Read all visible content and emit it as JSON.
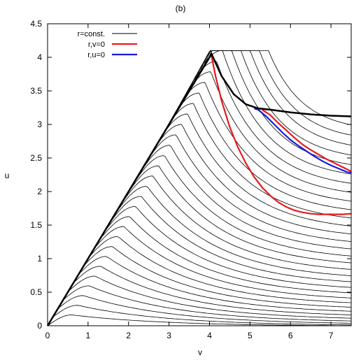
{
  "chart_data": {
    "type": "line",
    "title": "(b)",
    "xlabel": "v",
    "ylabel": "u",
    "xlim": [
      0,
      7.5
    ],
    "ylim": [
      0,
      4.5
    ],
    "x_ticks": [
      0,
      1,
      2,
      3,
      4,
      5,
      6,
      7
    ],
    "y_ticks": [
      0,
      0.5,
      1,
      1.5,
      2,
      2.5,
      3,
      3.5,
      4,
      4.5
    ],
    "x_tick_labels": [
      "0",
      "1",
      "2",
      "3",
      "4",
      "5",
      "6",
      "7"
    ],
    "y_tick_labels": [
      "0",
      "0.5",
      "1",
      "1.5",
      "2",
      "2.5",
      "3",
      "3.5",
      "4",
      "4.5"
    ],
    "grid": false,
    "legend_position": "top-left",
    "legend": [
      {
        "label": "r=const.",
        "color": "#000000"
      },
      {
        "label": "r,v=0",
        "color": "#e41a1c"
      },
      {
        "label": "r,u=0",
        "color": "#1a1adc"
      }
    ],
    "family": {
      "name": "r=const.",
      "color": "#000000",
      "count": 64,
      "start_points": [
        0.0,
        0.127,
        0.255,
        0.382,
        0.509,
        0.637,
        0.764,
        0.891,
        1.019,
        1.146,
        1.273,
        1.401,
        1.528,
        1.655,
        1.783,
        1.91,
        2.037,
        2.165,
        2.292,
        2.419,
        2.547,
        2.674,
        2.801,
        2.929,
        3.056,
        3.183,
        3.311,
        3.438,
        3.565,
        3.693,
        3.82,
        3.947
      ],
      "start_points_note_units": "v on the rising edge u = v"
    },
    "series": [
      {
        "name": "r,v=0",
        "color": "#e41a1c",
        "x": [
          4.05,
          4.15,
          4.3,
          4.5,
          4.7,
          4.9,
          5.1,
          5.3,
          5.5,
          5.7,
          5.9,
          6.1,
          6.3,
          6.5,
          6.7,
          6.9,
          7.1,
          7.3,
          7.5
        ],
        "y": [
          4.02,
          3.72,
          3.35,
          2.96,
          2.66,
          2.42,
          2.22,
          2.06,
          1.94,
          1.84,
          1.77,
          1.72,
          1.69,
          1.67,
          1.66,
          1.66,
          1.66,
          1.66,
          1.67
        ]
      },
      {
        "name": "r,u=0",
        "color": "#1a1adc",
        "x": [
          5.1,
          5.2,
          5.4,
          5.6,
          5.8,
          6.0,
          6.2,
          6.4,
          6.6,
          6.8,
          7.0,
          7.2,
          7.4,
          7.5
        ],
        "y": [
          3.24,
          3.22,
          3.12,
          3.0,
          2.88,
          2.77,
          2.68,
          2.6,
          2.52,
          2.45,
          2.39,
          2.34,
          2.29,
          2.28
        ]
      },
      {
        "name": "",
        "color": "#e41a1c",
        "x": [
          5.3,
          5.5,
          5.7,
          5.9,
          6.1,
          6.3,
          6.5,
          6.7,
          6.9,
          7.1,
          7.3,
          7.5
        ],
        "y": [
          3.22,
          3.14,
          3.02,
          2.91,
          2.8,
          2.7,
          2.62,
          2.55,
          2.48,
          2.42,
          2.36,
          2.3
        ]
      },
      {
        "name": "",
        "color": "#000000",
        "x": [
          0,
          4.05,
          4.3,
          4.6,
          4.9,
          5.2,
          5.5,
          6.0,
          6.5,
          7.0,
          7.5
        ],
        "y": [
          0,
          4.05,
          3.72,
          3.45,
          3.3,
          3.24,
          3.22,
          3.18,
          3.15,
          3.13,
          3.12
        ]
      }
    ]
  }
}
